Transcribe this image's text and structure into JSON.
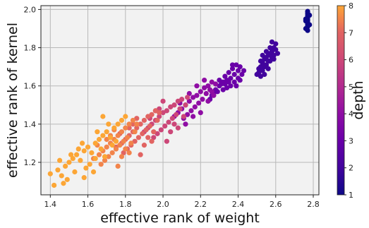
{
  "chart_data": {
    "type": "scatter",
    "title": "",
    "xlabel": "effective rank of weight",
    "ylabel": "effective rank of kernel",
    "xlim": [
      1.35,
      2.83
    ],
    "ylim": [
      1.03,
      2.02
    ],
    "xticks": [
      1.4,
      1.6,
      1.8,
      2.0,
      2.2,
      2.4,
      2.6,
      2.8
    ],
    "yticks": [
      1.2,
      1.4,
      1.6,
      1.8,
      2.0
    ],
    "grid": true,
    "colorbar": {
      "label": "depth",
      "min": 1,
      "max": 8,
      "ticks": [
        1,
        2,
        3,
        4,
        5,
        6,
        7,
        8
      ],
      "colormap": "plasma"
    },
    "series": [
      {
        "depth": 1,
        "points": [
          [
            2.77,
            1.89
          ],
          [
            2.77,
            1.91
          ],
          [
            2.77,
            1.92
          ],
          [
            2.77,
            1.93
          ],
          [
            2.77,
            1.94
          ],
          [
            2.77,
            1.95
          ],
          [
            2.77,
            1.96
          ],
          [
            2.77,
            1.97
          ],
          [
            2.77,
            1.98
          ],
          [
            2.77,
            1.99
          ],
          [
            2.76,
            1.9
          ],
          [
            2.78,
            1.92
          ],
          [
            2.76,
            1.95
          ],
          [
            2.78,
            1.97
          ],
          [
            2.77,
            1.93
          ],
          [
            2.76,
            1.94
          ]
        ]
      },
      {
        "depth": 2,
        "points": [
          [
            2.5,
            1.66
          ],
          [
            2.51,
            1.69
          ],
          [
            2.52,
            1.7
          ],
          [
            2.53,
            1.72
          ],
          [
            2.54,
            1.74
          ],
          [
            2.55,
            1.75
          ],
          [
            2.56,
            1.77
          ],
          [
            2.57,
            1.76
          ],
          [
            2.58,
            1.78
          ],
          [
            2.59,
            1.8
          ],
          [
            2.6,
            1.79
          ],
          [
            2.57,
            1.73
          ],
          [
            2.55,
            1.71
          ],
          [
            2.53,
            1.68
          ],
          [
            2.52,
            1.73
          ],
          [
            2.56,
            1.73
          ],
          [
            2.58,
            1.75
          ],
          [
            2.54,
            1.7
          ],
          [
            2.51,
            1.67
          ],
          [
            2.59,
            1.76
          ],
          [
            2.6,
            1.82
          ],
          [
            2.58,
            1.83
          ],
          [
            2.57,
            1.8
          ],
          [
            2.55,
            1.78
          ],
          [
            2.53,
            1.76
          ],
          [
            2.56,
            1.69
          ],
          [
            2.54,
            1.66
          ],
          [
            2.52,
            1.65
          ],
          [
            2.59,
            1.74
          ],
          [
            2.61,
            1.77
          ]
        ]
      },
      {
        "depth": 3,
        "points": [
          [
            2.26,
            1.55
          ],
          [
            2.28,
            1.58
          ],
          [
            2.3,
            1.6
          ],
          [
            2.32,
            1.62
          ],
          [
            2.34,
            1.63
          ],
          [
            2.36,
            1.64
          ],
          [
            2.38,
            1.66
          ],
          [
            2.4,
            1.68
          ],
          [
            2.41,
            1.7
          ],
          [
            2.39,
            1.71
          ],
          [
            2.37,
            1.69
          ],
          [
            2.35,
            1.67
          ],
          [
            2.33,
            1.65
          ],
          [
            2.31,
            1.61
          ],
          [
            2.29,
            1.57
          ],
          [
            2.27,
            1.56
          ],
          [
            2.36,
            1.6
          ],
          [
            2.38,
            1.62
          ],
          [
            2.4,
            1.64
          ],
          [
            2.34,
            1.59
          ],
          [
            2.42,
            1.66
          ],
          [
            2.43,
            1.68
          ],
          [
            2.3,
            1.63
          ],
          [
            2.25,
            1.53
          ],
          [
            2.32,
            1.58
          ],
          [
            2.37,
            1.71
          ],
          [
            2.39,
            1.6
          ],
          [
            2.35,
            1.62
          ],
          [
            2.41,
            1.63
          ],
          [
            2.33,
            1.61
          ]
        ]
      },
      {
        "depth": 4,
        "points": [
          [
            2.08,
            1.46
          ],
          [
            2.1,
            1.48
          ],
          [
            2.12,
            1.5
          ],
          [
            2.14,
            1.52
          ],
          [
            2.16,
            1.54
          ],
          [
            2.18,
            1.55
          ],
          [
            2.2,
            1.57
          ],
          [
            2.22,
            1.59
          ],
          [
            2.24,
            1.6
          ],
          [
            2.26,
            1.62
          ],
          [
            2.21,
            1.53
          ],
          [
            2.19,
            1.51
          ],
          [
            2.17,
            1.49
          ],
          [
            2.15,
            1.47
          ],
          [
            2.13,
            1.45
          ],
          [
            2.23,
            1.56
          ],
          [
            2.25,
            1.58
          ],
          [
            2.27,
            1.55
          ],
          [
            2.11,
            1.43
          ],
          [
            2.18,
            1.6
          ],
          [
            2.2,
            1.46
          ],
          [
            2.16,
            1.44
          ],
          [
            2.24,
            1.52
          ],
          [
            2.09,
            1.51
          ],
          [
            2.22,
            1.63
          ],
          [
            2.14,
            1.56
          ],
          [
            2.28,
            1.61
          ],
          [
            2.06,
            1.44
          ],
          [
            2.12,
            1.4
          ],
          [
            2.26,
            1.57
          ]
        ]
      },
      {
        "depth": 5,
        "points": [
          [
            1.92,
            1.38
          ],
          [
            1.94,
            1.4
          ],
          [
            1.96,
            1.42
          ],
          [
            1.98,
            1.44
          ],
          [
            2.0,
            1.46
          ],
          [
            2.02,
            1.47
          ],
          [
            2.04,
            1.49
          ],
          [
            2.06,
            1.5
          ],
          [
            2.08,
            1.52
          ],
          [
            2.1,
            1.53
          ],
          [
            2.05,
            1.43
          ],
          [
            2.03,
            1.41
          ],
          [
            2.01,
            1.39
          ],
          [
            1.99,
            1.37
          ],
          [
            1.97,
            1.35
          ],
          [
            2.07,
            1.45
          ],
          [
            2.09,
            1.48
          ],
          [
            2.11,
            1.44
          ],
          [
            1.95,
            1.33
          ],
          [
            2.0,
            1.52
          ],
          [
            1.93,
            1.43
          ],
          [
            2.04,
            1.36
          ],
          [
            2.12,
            1.5
          ],
          [
            1.98,
            1.48
          ],
          [
            2.06,
            1.4
          ],
          [
            1.9,
            1.36
          ],
          [
            2.02,
            1.31
          ],
          [
            2.13,
            1.54
          ],
          [
            2.08,
            1.38
          ],
          [
            1.96,
            1.47
          ]
        ]
      },
      {
        "depth": 6,
        "points": [
          [
            1.78,
            1.3
          ],
          [
            1.8,
            1.32
          ],
          [
            1.82,
            1.34
          ],
          [
            1.84,
            1.36
          ],
          [
            1.86,
            1.38
          ],
          [
            1.88,
            1.4
          ],
          [
            1.9,
            1.42
          ],
          [
            1.92,
            1.44
          ],
          [
            1.94,
            1.45
          ],
          [
            1.96,
            1.47
          ],
          [
            1.89,
            1.35
          ],
          [
            1.87,
            1.33
          ],
          [
            1.85,
            1.31
          ],
          [
            1.83,
            1.29
          ],
          [
            1.81,
            1.27
          ],
          [
            1.91,
            1.37
          ],
          [
            1.93,
            1.39
          ],
          [
            1.95,
            1.36
          ],
          [
            1.79,
            1.25
          ],
          [
            1.86,
            1.43
          ],
          [
            1.77,
            1.35
          ],
          [
            1.9,
            1.29
          ],
          [
            1.97,
            1.42
          ],
          [
            1.84,
            1.4
          ],
          [
            1.92,
            1.33
          ],
          [
            1.75,
            1.28
          ],
          [
            1.88,
            1.24
          ],
          [
            1.98,
            1.46
          ],
          [
            1.82,
            1.38
          ],
          [
            1.94,
            1.31
          ]
        ]
      },
      {
        "depth": 7,
        "points": [
          [
            1.66,
            1.24
          ],
          [
            1.68,
            1.26
          ],
          [
            1.7,
            1.28
          ],
          [
            1.72,
            1.3
          ],
          [
            1.74,
            1.32
          ],
          [
            1.76,
            1.34
          ],
          [
            1.78,
            1.36
          ],
          [
            1.8,
            1.38
          ],
          [
            1.82,
            1.4
          ],
          [
            1.84,
            1.42
          ],
          [
            1.77,
            1.29
          ],
          [
            1.75,
            1.27
          ],
          [
            1.73,
            1.25
          ],
          [
            1.71,
            1.23
          ],
          [
            1.69,
            1.21
          ],
          [
            1.79,
            1.31
          ],
          [
            1.81,
            1.33
          ],
          [
            1.83,
            1.3
          ],
          [
            1.67,
            1.19
          ],
          [
            1.74,
            1.37
          ],
          [
            1.65,
            1.29
          ],
          [
            1.78,
            1.23
          ],
          [
            1.85,
            1.36
          ],
          [
            1.72,
            1.34
          ],
          [
            1.8,
            1.27
          ],
          [
            1.63,
            1.22
          ],
          [
            1.76,
            1.18
          ],
          [
            1.86,
            1.4
          ],
          [
            1.7,
            1.32
          ],
          [
            1.82,
            1.25
          ]
        ]
      },
      {
        "depth": 8,
        "points": [
          [
            1.4,
            1.14
          ],
          [
            1.42,
            1.08
          ],
          [
            1.44,
            1.16
          ],
          [
            1.46,
            1.13
          ],
          [
            1.48,
            1.18
          ],
          [
            1.5,
            1.2
          ],
          [
            1.52,
            1.22
          ],
          [
            1.54,
            1.24
          ],
          [
            1.56,
            1.21
          ],
          [
            1.58,
            1.26
          ],
          [
            1.6,
            1.28
          ],
          [
            1.62,
            1.25
          ],
          [
            1.64,
            1.3
          ],
          [
            1.66,
            1.32
          ],
          [
            1.68,
            1.34
          ],
          [
            1.7,
            1.36
          ],
          [
            1.72,
            1.33
          ],
          [
            1.74,
            1.38
          ],
          [
            1.76,
            1.4
          ],
          [
            1.78,
            1.42
          ],
          [
            1.61,
            1.19
          ],
          [
            1.63,
            1.15
          ],
          [
            1.59,
            1.17
          ],
          [
            1.55,
            1.27
          ],
          [
            1.57,
            1.3
          ],
          [
            1.65,
            1.36
          ],
          [
            1.67,
            1.27
          ],
          [
            1.69,
            1.23
          ],
          [
            1.73,
            1.29
          ],
          [
            1.53,
            1.15
          ],
          [
            1.51,
            1.24
          ],
          [
            1.58,
            1.12
          ],
          [
            1.8,
            1.44
          ],
          [
            1.75,
            1.31
          ],
          [
            1.71,
            1.4
          ],
          [
            1.45,
            1.21
          ],
          [
            1.49,
            1.11
          ],
          [
            1.47,
            1.09
          ],
          [
            1.64,
            1.22
          ],
          [
            1.68,
            1.44
          ]
        ]
      }
    ]
  }
}
